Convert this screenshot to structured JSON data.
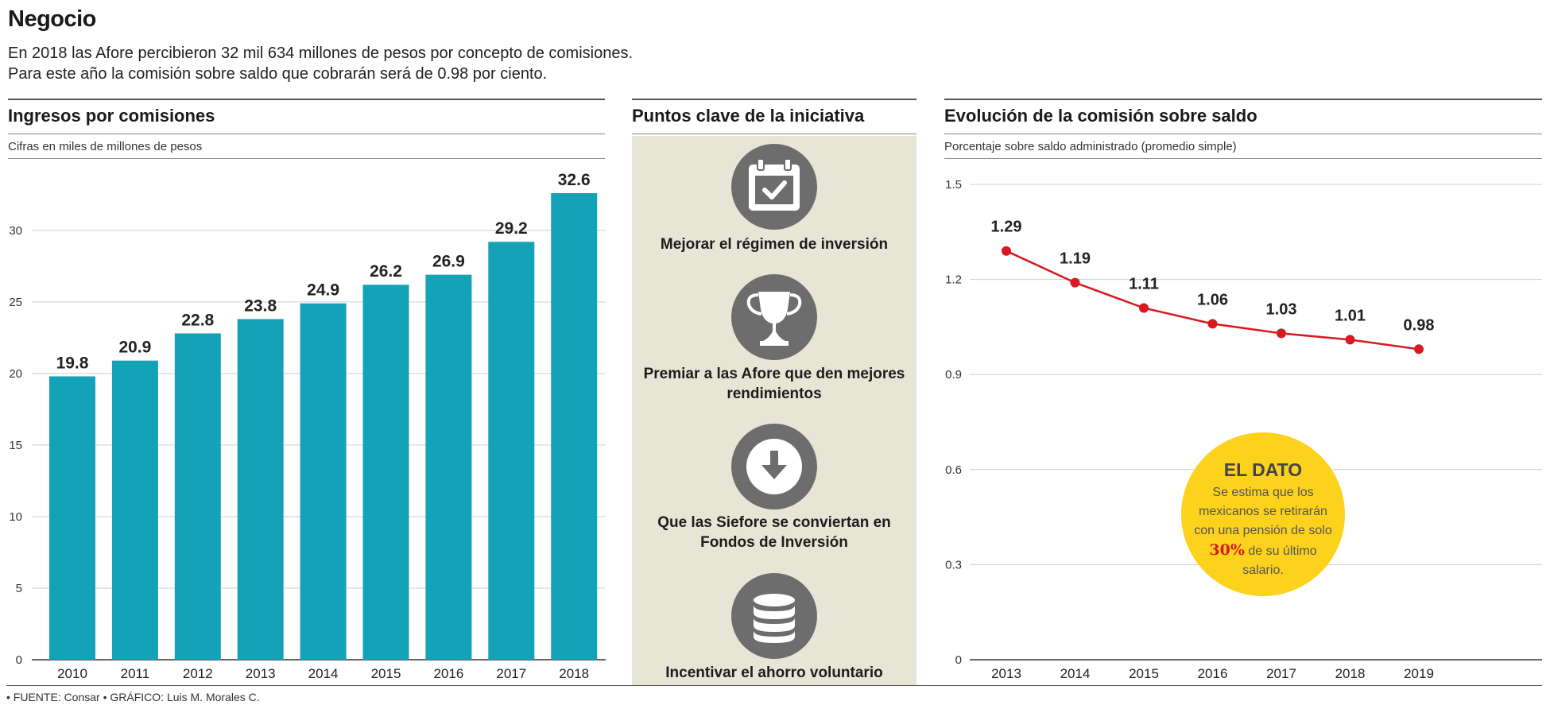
{
  "header": {
    "title": "Negocio",
    "intro_line1": "En 2018 las Afore percibieron 32 mil 634 millones de pesos por concepto de comisiones.",
    "intro_line2": "Para este año la comisión sobre saldo que cobrarán será de 0.98 por ciento."
  },
  "panels": {
    "left": {
      "title": "Ingresos por comisiones",
      "subtitle": "Cifras en miles de millones de pesos"
    },
    "middle": {
      "title": "Puntos clave de la iniciativa"
    },
    "right": {
      "title": "Evolución de la comisión sobre saldo",
      "subtitle": "Porcentaje sobre saldo administrado (promedio simple)"
    }
  },
  "key_points": [
    {
      "icon": "calendar-check-icon",
      "label": "Mejorar el régimen de inversión"
    },
    {
      "icon": "trophy-icon",
      "label": "Premiar a las Afore que den mejores rendimientos"
    },
    {
      "icon": "download-arrow-icon",
      "label": "Que las Siefore se conviertan en Fondos de Inversión"
    },
    {
      "icon": "coins-stack-icon",
      "label": "Incentivar el ahorro voluntario"
    }
  ],
  "callout": {
    "title": "EL DATO",
    "text_before": "Se estima que los mexicanos se retirarán con una pensión de solo",
    "highlight": "30%",
    "text_after": "de su último salario."
  },
  "source": "• FUENTE: Consar • GRÁFICO: Luis M. Morales C.",
  "colors": {
    "bar": "#13a2b8",
    "line": "#d71920",
    "panel_bg": "#e7e5d6",
    "callout": "#fcd21c",
    "icon_circle": "#6d6d6d"
  },
  "chart_data": [
    {
      "type": "bar",
      "title": "Ingresos por comisiones",
      "subtitle": "Cifras en miles de millones de pesos",
      "categories": [
        "2010",
        "2011",
        "2012",
        "2013",
        "2014",
        "2015",
        "2016",
        "2017",
        "2018"
      ],
      "values": [
        19.8,
        20.9,
        22.8,
        23.8,
        24.9,
        26.2,
        26.9,
        29.2,
        32.6
      ],
      "value_labels": [
        "19.8",
        "20.9",
        "22.8",
        "23.8",
        "24.9",
        "26.2",
        "26.9",
        "29.2",
        "32.6"
      ],
      "yticks": [
        "0",
        "5",
        "10",
        "15",
        "20",
        "25",
        "30"
      ],
      "ylim": [
        0,
        32.6
      ],
      "grid": true
    },
    {
      "type": "line",
      "title": "Evolución de la comisión sobre saldo",
      "subtitle": "Porcentaje sobre saldo administrado (promedio simple)",
      "x": [
        "2013",
        "2014",
        "2015",
        "2016",
        "2017",
        "2018",
        "2019"
      ],
      "values": [
        1.29,
        1.19,
        1.11,
        1.06,
        1.03,
        1.01,
        0.98
      ],
      "value_labels": [
        "1.29",
        "1.19",
        "1.11",
        "1.06",
        "1.03",
        "1.01",
        "0.98"
      ],
      "yticks": [
        "0",
        "0.3",
        "0.6",
        "0.9",
        "1.2",
        "1.5"
      ],
      "ylim": [
        0,
        1.5
      ],
      "grid": true
    }
  ]
}
